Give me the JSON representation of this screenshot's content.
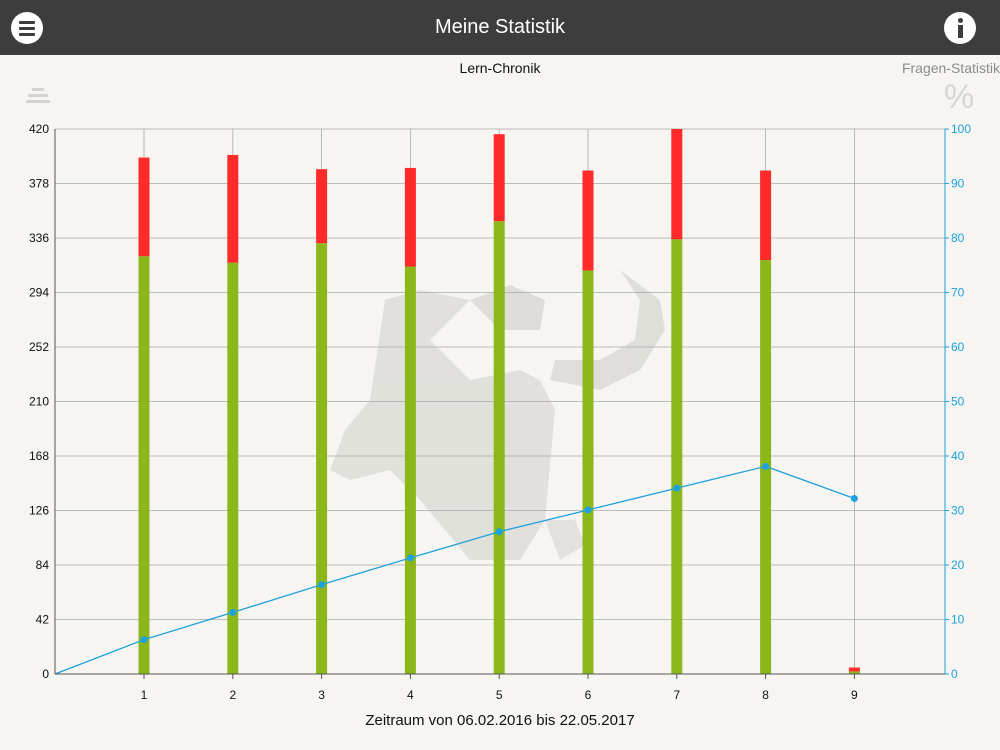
{
  "header": {
    "title": "Meine Statistik",
    "menu_icon": "hamburger-menu-icon",
    "info_icon": "info-icon"
  },
  "tabs": {
    "active": "Lern-Chronik",
    "inactive": "Fragen-Statistik"
  },
  "icons": {
    "left": "list-lines-icon",
    "right": "percent-icon",
    "right_glyph": "%"
  },
  "colors": {
    "header_bg": "#3d3d3d",
    "correct": "#8cb71a",
    "wrong": "#ff2a2a",
    "line": "#1ea1dc"
  },
  "footer": {
    "range_text": "Zeitraum von 06.02.2016 bis 22.05.2017"
  },
  "chart_data": {
    "type": "bar",
    "categories": [
      "1",
      "2",
      "3",
      "4",
      "5",
      "6",
      "7",
      "8",
      "9"
    ],
    "series": [
      {
        "values": [
          322,
          317,
          332,
          314,
          349,
          311,
          335,
          319,
          2
        ]
      },
      {
        "values": [
          76,
          83,
          57,
          76,
          67,
          77,
          85,
          69,
          3
        ]
      }
    ],
    "line_series": {
      "values": [
        6.3,
        11.3,
        16.4,
        21.3,
        26.1,
        30.1,
        34.1,
        38.1,
        32.2
      ]
    },
    "ylim": [
      0,
      420
    ],
    "y_ticks": [
      0,
      42,
      84,
      126,
      168,
      210,
      252,
      294,
      336,
      378,
      420
    ],
    "y2lim": [
      0,
      100
    ],
    "y2_ticks": [
      0,
      10,
      20,
      30,
      40,
      50,
      60,
      70,
      80,
      90,
      100
    ],
    "xlabel": "",
    "ylabel": "",
    "grid": true
  }
}
